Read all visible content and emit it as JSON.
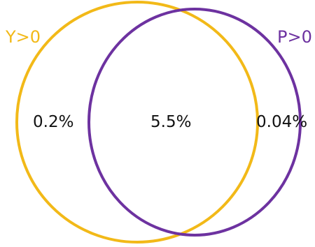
{
  "venn": {
    "sets": {
      "y": {
        "label": "Y>0",
        "color": "#f2b918"
      },
      "p": {
        "label": "P>0",
        "color": "#6d32a0"
      }
    },
    "regions": {
      "y_only": "0.2%",
      "intersection": "5.5%",
      "p_only": "0.04%"
    }
  }
}
